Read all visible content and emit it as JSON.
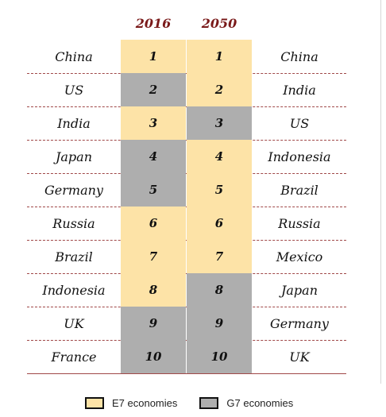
{
  "colors": {
    "e7": "#fde3a7",
    "g7": "#aeaeae"
  },
  "headers": {
    "year_left": "2016",
    "year_right": "2050"
  },
  "rows": [
    {
      "left": "China",
      "rank_left": "1",
      "group_left": "e7",
      "rank_right": "1",
      "group_right": "e7",
      "right": "China"
    },
    {
      "left": "US",
      "rank_left": "2",
      "group_left": "g7",
      "rank_right": "2",
      "group_right": "e7",
      "right": "India"
    },
    {
      "left": "India",
      "rank_left": "3",
      "group_left": "e7",
      "rank_right": "3",
      "group_right": "g7",
      "right": "US"
    },
    {
      "left": "Japan",
      "rank_left": "4",
      "group_left": "g7",
      "rank_right": "4",
      "group_right": "e7",
      "right": "Indonesia"
    },
    {
      "left": "Germany",
      "rank_left": "5",
      "group_left": "g7",
      "rank_right": "5",
      "group_right": "e7",
      "right": "Brazil"
    },
    {
      "left": "Russia",
      "rank_left": "6",
      "group_left": "e7",
      "rank_right": "6",
      "group_right": "e7",
      "right": "Russia"
    },
    {
      "left": "Brazil",
      "rank_left": "7",
      "group_left": "e7",
      "rank_right": "7",
      "group_right": "e7",
      "right": "Mexico"
    },
    {
      "left": "Indonesia",
      "rank_left": "8",
      "group_left": "e7",
      "rank_right": "8",
      "group_right": "g7",
      "right": "Japan"
    },
    {
      "left": "UK",
      "rank_left": "9",
      "group_left": "g7",
      "rank_right": "9",
      "group_right": "g7",
      "right": "Germany"
    },
    {
      "left": "France",
      "rank_left": "10",
      "group_left": "g7",
      "rank_right": "10",
      "group_right": "g7",
      "right": "UK"
    }
  ],
  "legend": {
    "e7_label": "E7 economies",
    "g7_label": "G7 economies"
  }
}
